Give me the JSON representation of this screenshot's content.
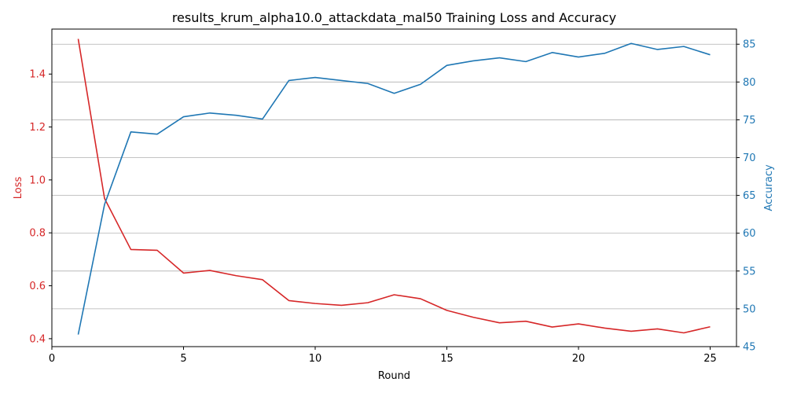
{
  "chart_data": {
    "type": "line",
    "title": "results_krum_alpha10.0_attackdata_mal50 Training Loss and Accuracy",
    "xlabel": "Round",
    "ylabel_left": "Loss",
    "ylabel_right": "Accuracy",
    "xlim": [
      0,
      26
    ],
    "ylim_left": [
      0.37,
      1.57
    ],
    "ylim_right": [
      45,
      87
    ],
    "x_ticks": [
      0,
      5,
      10,
      15,
      20,
      25
    ],
    "y_ticks_left": [
      0.4,
      0.6,
      0.8,
      1.0,
      1.2,
      1.4
    ],
    "y_ticks_right": [
      45,
      50,
      55,
      60,
      65,
      70,
      75,
      80,
      85
    ],
    "grid": "horizontal, right axis",
    "colors": {
      "loss": "#d62728",
      "accuracy": "#1f77b4"
    },
    "x": [
      1,
      2,
      3,
      4,
      5,
      6,
      7,
      8,
      9,
      10,
      11,
      12,
      13,
      14,
      15,
      16,
      17,
      18,
      19,
      20,
      21,
      22,
      23,
      24,
      25
    ],
    "series": [
      {
        "axis": "left",
        "values": [
          1.533,
          0.93,
          0.737,
          0.734,
          0.648,
          0.658,
          0.638,
          0.623,
          0.544,
          0.533,
          0.526,
          0.536,
          0.566,
          0.551,
          0.507,
          0.481,
          0.46,
          0.466,
          0.444,
          0.456,
          0.44,
          0.428,
          0.437,
          0.422,
          0.445
        ]
      },
      {
        "axis": "right",
        "values": [
          46.6,
          63.8,
          73.4,
          73.1,
          75.4,
          75.9,
          75.6,
          75.1,
          80.2,
          80.6,
          80.2,
          79.8,
          78.5,
          79.7,
          82.2,
          82.8,
          83.2,
          82.7,
          83.9,
          83.3,
          83.8,
          85.1,
          84.3,
          84.7,
          83.6
        ]
      }
    ]
  }
}
